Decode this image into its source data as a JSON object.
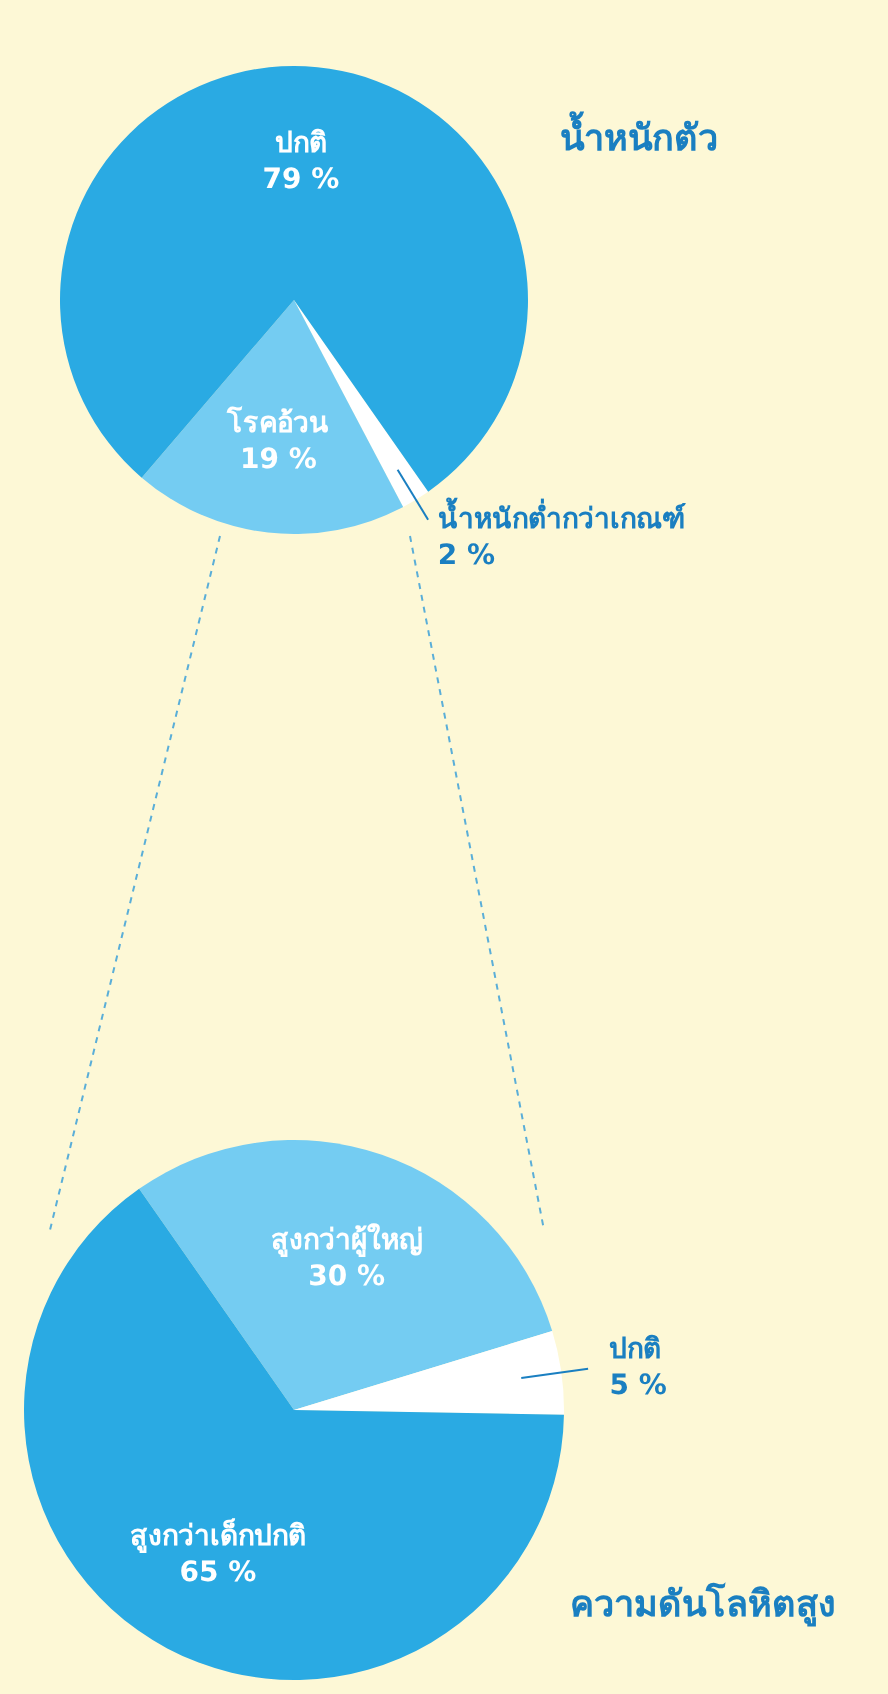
{
  "chart_data": [
    {
      "type": "pie",
      "title": "น้ำหนักตัว",
      "categories": [
        "น้ำหนักต่ำกว่าเกณฑ์",
        "โรคอ้วน",
        "ปกติ"
      ],
      "values": [
        2,
        19,
        79
      ],
      "value_labels": [
        "2 %",
        "19 %",
        "79 %"
      ],
      "colors": [
        "#ffffff",
        "#74ccf2",
        "#2aaae3"
      ]
    },
    {
      "type": "pie",
      "title": "ความดันโลหิตสูง",
      "categories": [
        "สูงกว่าผู้ใหญ่",
        "ปกติ",
        "สูงกว่าเด็กปกติ"
      ],
      "values": [
        30,
        5,
        65
      ],
      "value_labels": [
        "30 %",
        "5 %",
        "65 %"
      ],
      "colors": [
        "#74ccf2",
        "#ffffff",
        "#2aaae3"
      ]
    }
  ]
}
